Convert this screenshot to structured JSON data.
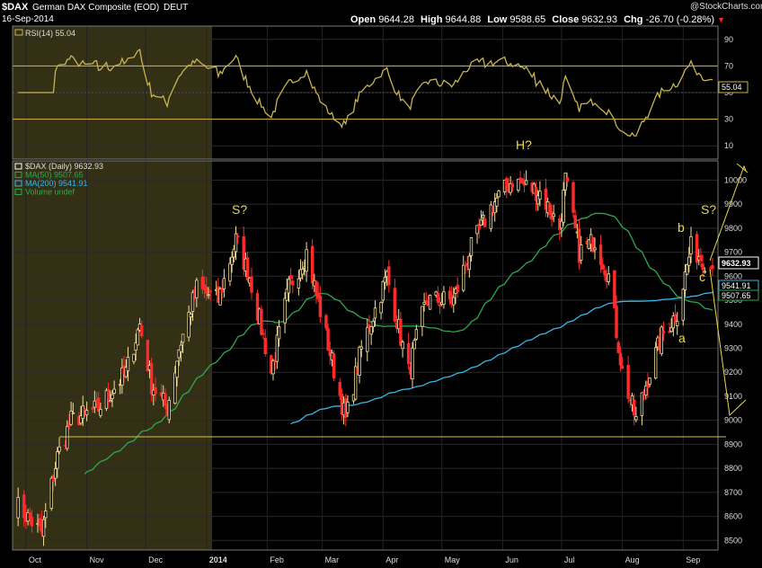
{
  "header": {
    "symbol": "$DAX",
    "name": "German DAX Composite (EOD)",
    "exchange": "DEUT",
    "date": "16-Sep-2014",
    "open_label": "Open",
    "open": "9644.28",
    "high_label": "High",
    "high": "9644.88",
    "low_label": "Low",
    "low": "9588.65",
    "close_label": "Close",
    "close": "9632.93",
    "chg_label": "Chg",
    "chg": "-26.70 (-0.28%)",
    "chg_icon": "down-triangle",
    "watermark": "@StockCharts.com"
  },
  "rsi_panel": {
    "legend": "RSI(14) 55.04",
    "value_tag": "55.04",
    "ticks": [
      90,
      70,
      50,
      30,
      10
    ],
    "overbought": 70,
    "oversold": 30,
    "colors": {
      "line": "#c8b450",
      "band": "#d4b74a",
      "fill": "#bba24a"
    }
  },
  "price_panel": {
    "legend": [
      {
        "text": "$DAX (Daily) 9632.93",
        "color": "#ffffff",
        "icon": "candlestick-icon"
      },
      {
        "text": "MA(50) 9507.65",
        "color": "#2fa84f",
        "icon": "line-icon"
      },
      {
        "text": "MA(200) 9541.91",
        "color": "#36b7e5",
        "icon": "line-icon"
      },
      {
        "text": "Volume undef",
        "color": "#2fa84f",
        "icon": "bar-icon"
      }
    ],
    "value_tags": {
      "close": "9632.93",
      "ma200": "9541.91",
      "ma50": "9507.65"
    },
    "annotations": {
      "s_left": "S?",
      "h": "H?",
      "s_right": "S?",
      "a": "a",
      "b": "b",
      "c": "c"
    },
    "colors": {
      "up": "#f4e09a",
      "down": "#ff2b2b",
      "ma50": "#2fa84f",
      "ma200": "#36b7e5",
      "annotation": "#e8d94a",
      "neckline": "#d8c24a"
    }
  },
  "x_axis": {
    "labels": [
      "Oct",
      "Nov",
      "Dec",
      "2014",
      "Feb",
      "Mar",
      "Apr",
      "May",
      "Jun",
      "Jul",
      "Aug",
      "Sep"
    ]
  },
  "chart_data": {
    "type": "candlestick",
    "title": "German DAX Composite (EOD)",
    "ylim": [
      8460,
      10080
    ],
    "y_ticks": [
      8500,
      8600,
      8700,
      8800,
      8900,
      9000,
      9100,
      9200,
      9300,
      9400,
      9500,
      9600,
      9700,
      9800,
      9900,
      10000
    ],
    "x_ticks": [
      "Oct",
      "Nov",
      "Dec",
      "2014",
      "Feb",
      "Mar",
      "Apr",
      "May",
      "Jun",
      "Jul",
      "Aug",
      "Sep"
    ],
    "close_anchors": [
      {
        "date": "2013-09-26",
        "close": 8650
      },
      {
        "date": "2013-10-09",
        "close": 8530
      },
      {
        "date": "2013-10-17",
        "close": 8850
      },
      {
        "date": "2013-10-24",
        "close": 9000
      },
      {
        "date": "2013-11-07",
        "close": 9050
      },
      {
        "date": "2013-11-21",
        "close": 9200
      },
      {
        "date": "2013-11-28",
        "close": 9400
      },
      {
        "date": "2013-12-04",
        "close": 9150
      },
      {
        "date": "2013-12-12",
        "close": 9050
      },
      {
        "date": "2013-12-18",
        "close": 9300
      },
      {
        "date": "2013-12-27",
        "close": 9550
      },
      {
        "date": "2014-01-07",
        "close": 9500
      },
      {
        "date": "2014-01-16",
        "close": 9750
      },
      {
        "date": "2014-01-23",
        "close": 9600
      },
      {
        "date": "2014-02-03",
        "close": 9200
      },
      {
        "date": "2014-02-12",
        "close": 9550
      },
      {
        "date": "2014-02-21",
        "close": 9700
      },
      {
        "date": "2014-03-03",
        "close": 9350
      },
      {
        "date": "2014-03-13",
        "close": 9000
      },
      {
        "date": "2014-03-21",
        "close": 9300
      },
      {
        "date": "2014-04-03",
        "close": 9600
      },
      {
        "date": "2014-04-14",
        "close": 9200
      },
      {
        "date": "2014-04-23",
        "close": 9500
      },
      {
        "date": "2014-05-07",
        "close": 9500
      },
      {
        "date": "2014-05-15",
        "close": 9700
      },
      {
        "date": "2014-05-27",
        "close": 9900
      },
      {
        "date": "2014-06-06",
        "close": 10000
      },
      {
        "date": "2014-06-20",
        "close": 9950
      },
      {
        "date": "2014-06-30",
        "close": 9800
      },
      {
        "date": "2014-07-03",
        "close": 10000
      },
      {
        "date": "2014-07-10",
        "close": 9700
      },
      {
        "date": "2014-07-18",
        "close": 9750
      },
      {
        "date": "2014-07-25",
        "close": 9600
      },
      {
        "date": "2014-08-01",
        "close": 9200
      },
      {
        "date": "2014-08-08",
        "close": 9000
      },
      {
        "date": "2014-08-13",
        "close": 9150
      },
      {
        "date": "2014-08-21",
        "close": 9350
      },
      {
        "date": "2014-08-29",
        "close": 9450
      },
      {
        "date": "2014-09-05",
        "close": 9720
      },
      {
        "date": "2014-09-16",
        "close": 9632.93
      }
    ],
    "ohlc_last": {
      "open": 9644.28,
      "high": 9644.88,
      "low": 9588.65,
      "close": 9632.93
    },
    "series": [
      {
        "name": "MA(50)",
        "last": 9507.65
      },
      {
        "name": "MA(200)",
        "last": 9541.91
      },
      {
        "name": "RSI(14)",
        "last": 55.04
      }
    ],
    "neckline_level": 8910
  }
}
